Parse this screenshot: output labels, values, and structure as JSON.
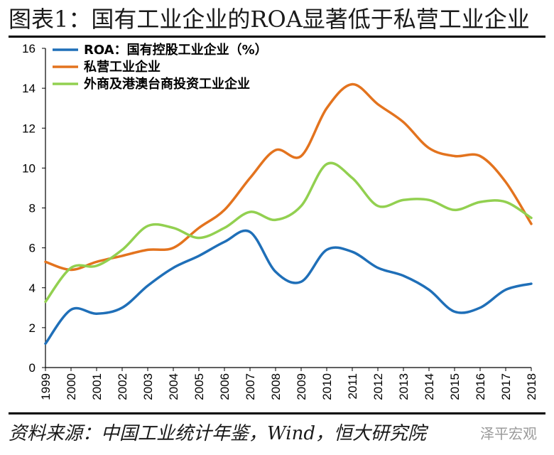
{
  "header": {
    "title": "图表1：国有工业企业的ROA显著低于私营工业企业"
  },
  "footer": {
    "source": "资料来源：中国工业统计年鉴，Wind，恒大研究院",
    "watermark": "泽平宏观"
  },
  "colors": {
    "axis": "#000000"
  },
  "chart_data": {
    "type": "line",
    "title": "图表1：国有工业企业的ROA显著低于私营工业企业",
    "xlabel": "",
    "ylabel": "",
    "x": [
      "1999",
      "2000",
      "2001",
      "2002",
      "2003",
      "2004",
      "2005",
      "2006",
      "2007",
      "2008",
      "2009",
      "2010",
      "2011",
      "2012",
      "2013",
      "2014",
      "2015",
      "2016",
      "2017",
      "2018"
    ],
    "ylim": [
      0,
      16
    ],
    "yticks": [
      0,
      2,
      4,
      6,
      8,
      10,
      12,
      14,
      16
    ],
    "grid": false,
    "legend_position": "top-left",
    "series": [
      {
        "name": "ROA：国有控股工业企业（%）",
        "color": "#1f6fb8",
        "values": [
          1.2,
          2.9,
          2.7,
          3.0,
          4.1,
          5.0,
          5.6,
          6.3,
          6.8,
          4.8,
          4.3,
          5.9,
          5.8,
          5.0,
          4.6,
          3.9,
          2.8,
          3.0,
          3.9,
          4.2
        ]
      },
      {
        "name": "私营工业企业",
        "color": "#e3731e",
        "values": [
          5.3,
          4.9,
          5.3,
          5.6,
          5.9,
          6.0,
          7.0,
          7.9,
          9.5,
          10.9,
          10.6,
          13.0,
          14.2,
          13.2,
          12.3,
          11.0,
          10.6,
          10.6,
          9.3,
          7.2
        ]
      },
      {
        "name": "外商及港澳台商投资工业企业",
        "color": "#92d050",
        "values": [
          3.3,
          5.0,
          5.1,
          5.9,
          7.1,
          7.0,
          6.5,
          7.0,
          7.8,
          7.4,
          8.1,
          10.2,
          9.5,
          8.1,
          8.4,
          8.4,
          7.9,
          8.3,
          8.3,
          7.5
        ]
      }
    ]
  }
}
